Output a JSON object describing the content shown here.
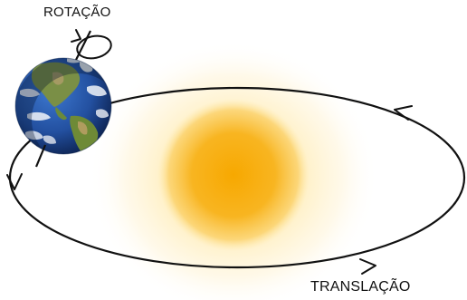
{
  "labels": {
    "rotation": "ROTAÇÃO",
    "translation": "TRANSLAÇÃO"
  },
  "colors": {
    "sun_core": "#f7a800",
    "sun_glow": "#ffe9a8",
    "orbit": "#111111",
    "ocean": "#2a5db0",
    "land": "#6f8a3c",
    "cloud": "#ffffff"
  },
  "icons": {
    "earth": "earth-globe-icon",
    "sun": "sun-icon",
    "rotation": "rotation-arrow-icon"
  }
}
